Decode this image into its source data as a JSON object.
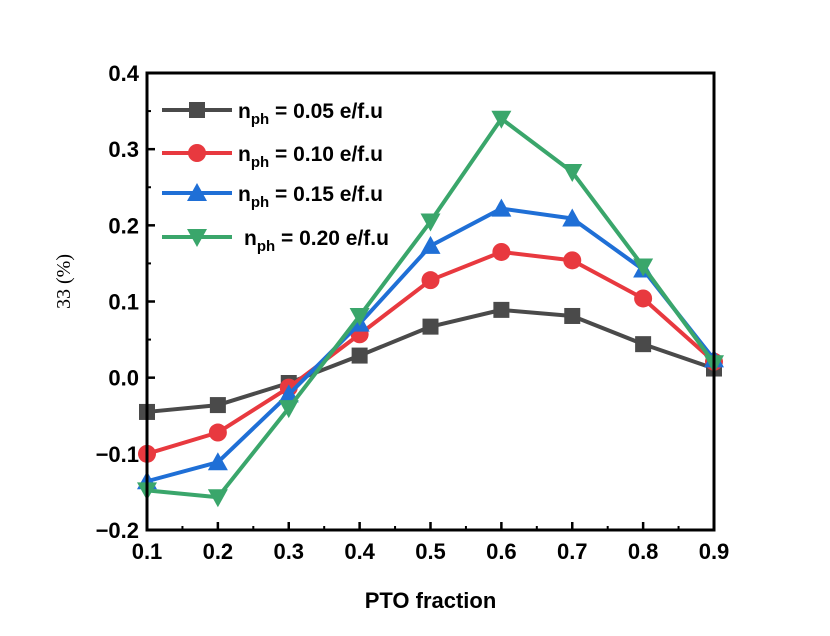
{
  "chart_data": {
    "type": "line",
    "x": [
      0.1,
      0.2,
      0.3,
      0.4,
      0.5,
      0.6,
      0.7,
      0.8,
      0.9
    ],
    "xlim": [
      0.1,
      0.9
    ],
    "ylim": [
      -0.2,
      0.4
    ],
    "xticks": [
      "0.1",
      "0.2",
      "0.3",
      "0.4",
      "0.5",
      "0.6",
      "0.7",
      "0.8",
      "0.9"
    ],
    "yticks": [
      "0.4",
      "0.3",
      "0.2",
      "0.1",
      "0.0",
      "−0.1",
      "−0.2"
    ],
    "xlabel": "PTO fraction",
    "ylabel": "33 (%)",
    "legend_position": "top-left",
    "series": [
      {
        "name_main": "n",
        "name_sub": "ph",
        "name_rest": " = 0.05 e/f.u",
        "color": "#4a4a4a",
        "marker": "square",
        "values": [
          -0.045,
          -0.036,
          -0.007,
          0.029,
          0.067,
          0.089,
          0.081,
          0.044,
          0.012
        ]
      },
      {
        "name_main": "n",
        "name_sub": "ph",
        "name_rest": " = 0.10 e/f.u",
        "color": "#e8393f",
        "marker": "circle",
        "values": [
          -0.1,
          -0.072,
          -0.013,
          0.057,
          0.128,
          0.165,
          0.154,
          0.104,
          0.021
        ]
      },
      {
        "name_main": "n",
        "name_sub": "ph",
        "name_rest": " = 0.15 e/f.u",
        "color": "#1f6fd6",
        "marker": "triangle-up",
        "values": [
          -0.136,
          -0.111,
          -0.022,
          0.071,
          0.173,
          0.222,
          0.209,
          0.142,
          0.024
        ]
      },
      {
        "name_main": "n",
        "name_sub": "ph",
        "name_rest": " = 0.20 e/f.u",
        "color": "#3aa66b",
        "marker": "triangle-down",
        "values": [
          -0.148,
          -0.157,
          -0.04,
          0.081,
          0.205,
          0.34,
          0.27,
          0.146,
          0.019
        ]
      }
    ]
  }
}
